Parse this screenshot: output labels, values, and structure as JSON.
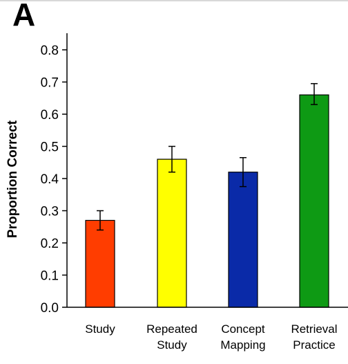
{
  "panel": {
    "label": "A"
  },
  "chart_data": {
    "type": "bar",
    "title": "",
    "xlabel": "",
    "ylabel": "Proportion Correct",
    "ylim": [
      0,
      0.85
    ],
    "yticks": [
      "0.0",
      "0.1",
      "0.2",
      "0.3",
      "0.4",
      "0.5",
      "0.6",
      "0.7",
      "0.8"
    ],
    "grid": false,
    "categories": [
      [
        "Study"
      ],
      [
        "Repeated",
        "Study"
      ],
      [
        "Concept",
        "Mapping"
      ],
      [
        "Retrieval",
        "Practice"
      ]
    ],
    "values": [
      0.27,
      0.46,
      0.42,
      0.66
    ],
    "error_low": [
      0.24,
      0.42,
      0.375,
      0.63
    ],
    "error_high": [
      0.3,
      0.5,
      0.465,
      0.695
    ],
    "colors": [
      "#ff3d00",
      "#ffff00",
      "#0a2aa8",
      "#0e9a14"
    ]
  }
}
